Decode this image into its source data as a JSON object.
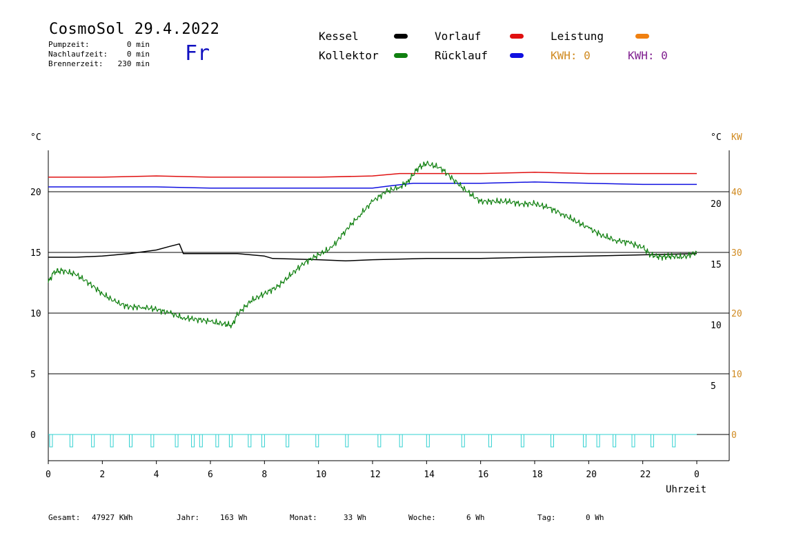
{
  "header": {
    "title": "CosmoSol 29.4.2022",
    "weekday": "Fr",
    "stats": [
      {
        "label": "Pumpzeit:",
        "value": "0 min"
      },
      {
        "label": "Nachlaufzeit:",
        "value": "0 min"
      },
      {
        "label": "Brennerzeit:",
        "value": "230 min"
      }
    ]
  },
  "legend": {
    "kessel": {
      "label": "Kessel",
      "color": "#000000"
    },
    "vorlauf": {
      "label": "Vorlauf",
      "color": "#e01010"
    },
    "leistung": {
      "label": "Leistung",
      "color": "#f08010"
    },
    "kollektor": {
      "label": "Kollektor",
      "color": "#108010"
    },
    "ruecklauf": {
      "label": "Rücklauf",
      "color": "#1010e0"
    },
    "kwh_orange": "KWH: 0",
    "kwh_purple": "KWH: 0",
    "kwh_orange_color": "#d08a20",
    "kwh_purple_color": "#802090",
    "pump_color": "#30d0d0"
  },
  "axes": {
    "left_unit": "°C",
    "right_unit_c": "°C",
    "right_unit_kw": "KW",
    "xlabel": "Uhrzeit"
  },
  "footer": {
    "gesamt_label": "Gesamt:",
    "gesamt_value": "47927 KWh",
    "jahr_label": "Jahr:",
    "jahr_value": "163 Wh",
    "monat_label": "Monat:",
    "monat_value": "33 Wh",
    "woche_label": "Woche:",
    "woche_value": "6 Wh",
    "tag_label": "Tag:",
    "tag_value": "0 Wh"
  },
  "chart_data": {
    "type": "line",
    "title": "CosmoSol 29.4.2022",
    "xlabel": "Uhrzeit",
    "ylabel": "°C",
    "xlim": [
      0,
      24
    ],
    "ylim": [
      -2,
      24
    ],
    "x_ticks": [
      "0",
      "2",
      "4",
      "6",
      "8",
      "10",
      "12",
      "14",
      "16",
      "18",
      "20",
      "22",
      "0"
    ],
    "y_ticks_left": [
      "0",
      "5",
      "10",
      "15",
      "20"
    ],
    "y_ticks_right_c": [
      "5",
      "10",
      "15",
      "20"
    ],
    "y_ticks_right_kw": [
      "0",
      "10",
      "20",
      "30",
      "40"
    ],
    "grid": "horizontal",
    "series": [
      {
        "name": "Vorlauf",
        "color": "#e01010",
        "x": [
          0,
          2,
          4,
          6,
          8,
          10,
          12,
          13,
          14,
          16,
          18,
          20,
          22,
          24
        ],
        "y": [
          21.2,
          21.2,
          21.3,
          21.2,
          21.2,
          21.2,
          21.3,
          21.5,
          21.5,
          21.5,
          21.6,
          21.5,
          21.5,
          21.5
        ]
      },
      {
        "name": "Rücklauf",
        "color": "#1010e0",
        "x": [
          0,
          2,
          4,
          6,
          8,
          10,
          12,
          12.7,
          13.5,
          14,
          16,
          18,
          20,
          22,
          24
        ],
        "y": [
          20.4,
          20.4,
          20.4,
          20.3,
          20.3,
          20.3,
          20.3,
          20.5,
          20.7,
          20.7,
          20.7,
          20.8,
          20.7,
          20.6,
          20.6
        ]
      },
      {
        "name": "Kessel",
        "color": "#000000",
        "x": [
          0,
          1,
          2,
          3,
          4,
          4.5,
          4.85,
          5,
          6,
          7,
          8,
          8.3,
          10,
          11,
          12,
          14,
          16,
          18,
          20,
          22,
          24
        ],
        "y": [
          14.6,
          14.6,
          14.7,
          14.9,
          15.2,
          15.5,
          15.7,
          14.9,
          14.9,
          14.9,
          14.7,
          14.5,
          14.4,
          14.3,
          14.4,
          14.5,
          14.5,
          14.6,
          14.7,
          14.8,
          14.9
        ]
      },
      {
        "name": "Kollektor",
        "color": "#108010",
        "x": [
          0,
          0.2,
          0.5,
          1,
          1.5,
          2,
          2.5,
          3,
          3.5,
          4,
          4.5,
          5,
          5.5,
          6,
          6.5,
          6.8,
          7,
          7.5,
          8,
          8.5,
          9,
          9.5,
          10,
          10.5,
          11,
          11.5,
          12,
          12.5,
          13,
          13.3,
          13.7,
          14,
          14.5,
          15,
          15.5,
          16,
          16.5,
          17,
          17.5,
          18,
          18.5,
          19,
          19.5,
          20,
          20.5,
          21,
          21.5,
          22,
          22.3,
          22.7,
          23,
          23.5,
          24
        ],
        "y": [
          12.5,
          13.4,
          13.5,
          13.2,
          12.5,
          11.6,
          10.9,
          10.5,
          10.5,
          10.3,
          10.0,
          9.6,
          9.5,
          9.3,
          9.1,
          9.0,
          9.9,
          11.0,
          11.6,
          12.2,
          13.2,
          14.2,
          14.8,
          15.4,
          16.8,
          18.0,
          19.2,
          20.0,
          20.4,
          20.8,
          22.0,
          22.3,
          22.0,
          21.0,
          20.0,
          19.2,
          19.2,
          19.2,
          19.0,
          19.0,
          18.7,
          18.2,
          17.6,
          17.0,
          16.4,
          16.0,
          15.8,
          15.4,
          14.8,
          14.6,
          14.7,
          14.6,
          15.0
        ]
      }
    ],
    "pump_pulses": [
      0.05,
      0.8,
      1.6,
      2.3,
      3.0,
      3.8,
      4.7,
      5.3,
      5.6,
      6.2,
      6.7,
      7.4,
      7.9,
      8.8,
      9.9,
      11.0,
      12.2,
      13.0,
      14.0,
      15.3,
      16.3,
      17.5,
      18.6,
      19.8,
      20.3,
      20.9,
      21.6,
      22.3,
      23.1
    ]
  }
}
